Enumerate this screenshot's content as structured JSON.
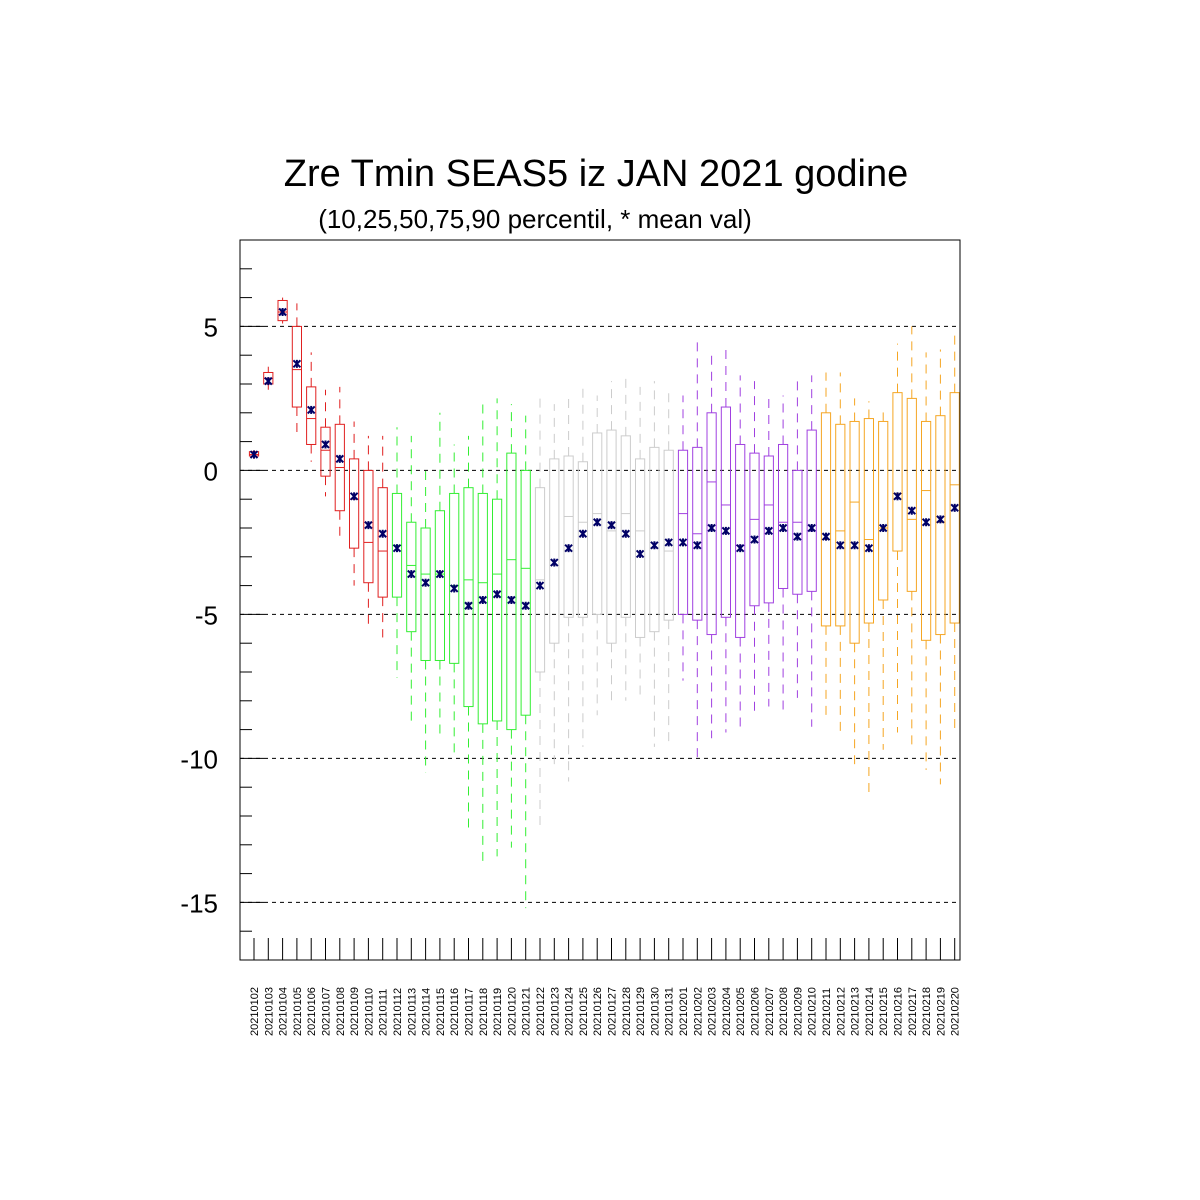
{
  "chart_data": {
    "type": "box",
    "title": "Zre Tmin SEAS5 iz JAN 2021 godine",
    "subtitle": "(10,25,50,75,90 percentil, * mean val)",
    "ylim": [
      -17,
      8
    ],
    "yticks": [
      5,
      0,
      -5,
      -10,
      -15
    ],
    "grid": "dashed horizontal at major ticks",
    "mean_marker": "*",
    "mean_color": "#000066",
    "group_colors": [
      "#e02020",
      "#33ee33",
      "#cccccc",
      "#a040e0",
      "#f5a623"
    ],
    "categories": [
      "20210102",
      "20210103",
      "20210104",
      "20210105",
      "20210106",
      "20210107",
      "20210108",
      "20210109",
      "20210110",
      "20210111",
      "20210112",
      "20210113",
      "20210114",
      "20210115",
      "20210116",
      "20210117",
      "20210118",
      "20210119",
      "20210120",
      "20210121",
      "20210122",
      "20210123",
      "20210124",
      "20210125",
      "20210126",
      "20210127",
      "20210128",
      "20210129",
      "20210130",
      "20210131",
      "20210201",
      "20210202",
      "20210203",
      "20210204",
      "20210205",
      "20210206",
      "20210207",
      "20210208",
      "20210209",
      "20210210",
      "20210211",
      "20210212",
      "20210213",
      "20210214",
      "20210215",
      "20210216",
      "20210217",
      "20210218",
      "20210219",
      "20210220"
    ],
    "group": [
      0,
      0,
      0,
      0,
      0,
      0,
      0,
      0,
      0,
      0,
      1,
      1,
      1,
      1,
      1,
      1,
      1,
      1,
      1,
      1,
      2,
      2,
      2,
      2,
      2,
      2,
      2,
      2,
      2,
      2,
      3,
      3,
      3,
      3,
      3,
      3,
      3,
      3,
      3,
      3,
      4,
      4,
      4,
      4,
      4,
      4,
      4,
      4,
      4,
      4
    ],
    "p10": [
      0.4,
      2.8,
      5.1,
      1.2,
      0.3,
      -0.9,
      -2.4,
      -4.0,
      -5.5,
      -5.8,
      -7.2,
      -8.7,
      -10.5,
      -9.3,
      -10.0,
      -12.4,
      -13.6,
      -13.4,
      -13.1,
      -15.2,
      -12.4,
      -10.2,
      -10.8,
      -9.6,
      -8.5,
      -8.2,
      -8.0,
      -7.8,
      -9.6,
      -9.4,
      -7.3,
      -10.2,
      -9.3,
      -9.1,
      -9.0,
      -8.5,
      -8.2,
      -8.4,
      -7.9,
      -8.9,
      -8.6,
      -9.2,
      -10.2,
      -11.3,
      -9.7,
      -9.1,
      -9.6,
      -10.4,
      -10.9,
      -9.1
    ],
    "p25": [
      0.5,
      3.0,
      5.2,
      2.2,
      0.9,
      -0.2,
      -1.4,
      -2.7,
      -3.9,
      -4.4,
      -4.4,
      -5.6,
      -6.6,
      -6.6,
      -6.7,
      -8.2,
      -8.8,
      -8.7,
      -9.0,
      -8.5,
      -7.0,
      -6.0,
      -5.1,
      -5.1,
      -5.0,
      -6.0,
      -5.1,
      -5.8,
      -5.6,
      -5.2,
      -5.0,
      -5.2,
      -5.7,
      -5.1,
      -5.8,
      -4.7,
      -4.6,
      -4.1,
      -4.3,
      -4.2,
      -5.4,
      -5.4,
      -6.0,
      -5.3,
      -4.5,
      -2.8,
      -4.2,
      -5.9,
      -5.7,
      -5.3
    ],
    "p50": [
      0.55,
      3.2,
      5.5,
      3.5,
      1.8,
      0.7,
      0.1,
      -1.0,
      -2.5,
      -2.8,
      -2.6,
      -3.3,
      -3.6,
      -3.6,
      -4.0,
      -3.8,
      -3.9,
      -3.6,
      -3.1,
      -3.4,
      -3.8,
      -3.3,
      -1.6,
      -1.8,
      -1.5,
      -2.1,
      -1.5,
      -2.1,
      -2.7,
      -2.8,
      -1.5,
      -2.2,
      -0.4,
      -1.2,
      -2.6,
      -1.7,
      -1.2,
      -1.8,
      -1.8,
      -2.1,
      -2.4,
      -2.1,
      -1.1,
      -2.4,
      -2.0,
      -0.8,
      -1.7,
      -0.7,
      -1.8,
      -0.5
    ],
    "p75": [
      0.65,
      3.4,
      5.9,
      5.0,
      2.9,
      1.5,
      1.6,
      0.4,
      0.0,
      -0.6,
      -0.8,
      -1.8,
      -2.0,
      -1.4,
      -0.8,
      -0.6,
      -0.8,
      -1.0,
      0.6,
      0.0,
      -0.6,
      0.4,
      0.5,
      0.3,
      1.3,
      1.4,
      1.2,
      0.4,
      0.8,
      0.7,
      0.7,
      0.8,
      2.0,
      2.2,
      0.9,
      0.6,
      0.5,
      0.9,
      0.0,
      1.4,
      2.0,
      1.6,
      1.7,
      1.8,
      1.7,
      2.7,
      2.5,
      1.7,
      1.9,
      2.7
    ],
    "p90": [
      0.7,
      3.6,
      6.0,
      5.8,
      4.1,
      2.8,
      2.9,
      1.7,
      1.2,
      1.2,
      1.5,
      1.2,
      0.2,
      2.0,
      0.9,
      1.2,
      2.3,
      2.5,
      2.3,
      1.9,
      2.5,
      2.3,
      2.7,
      2.9,
      2.6,
      3.1,
      3.3,
      2.9,
      3.1,
      2.7,
      2.6,
      4.5,
      4.0,
      4.3,
      3.3,
      3.1,
      2.6,
      2.6,
      3.2,
      3.3,
      3.4,
      3.4,
      2.5,
      2.4,
      2.2,
      4.4,
      5.0,
      4.1,
      4.2,
      4.7
    ],
    "mean": [
      0.55,
      3.1,
      5.5,
      3.7,
      2.1,
      0.9,
      0.4,
      -0.9,
      -1.9,
      -2.2,
      -2.7,
      -3.6,
      -3.9,
      -3.6,
      -4.1,
      -4.7,
      -4.5,
      -4.3,
      -4.5,
      -4.7,
      -4.0,
      -3.2,
      -2.7,
      -2.2,
      -1.8,
      -1.9,
      -2.2,
      -2.9,
      -2.6,
      -2.5,
      -2.5,
      -2.6,
      -2.0,
      -2.1,
      -2.7,
      -2.4,
      -2.1,
      -2.0,
      -2.3,
      -2.0,
      -2.3,
      -2.6,
      -2.6,
      -2.7,
      -2.0,
      -0.9,
      -1.4,
      -1.8,
      -1.7,
      -1.3
    ]
  }
}
